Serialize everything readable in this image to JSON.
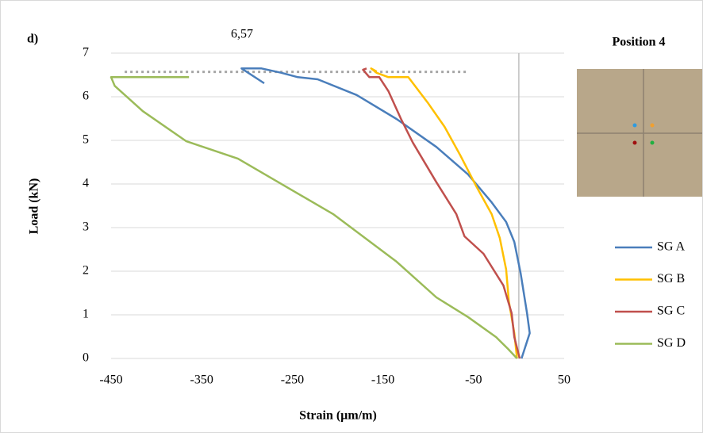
{
  "chart_data": {
    "type": "line",
    "panel_label": "d)",
    "title": "Position 4",
    "x_label": "Strain (µm/m)",
    "y_label": "Load (kN)",
    "xlim": [
      -450,
      50
    ],
    "xticks": [
      -450,
      -350,
      -250,
      -150,
      -50,
      50
    ],
    "ylim": [
      0,
      7
    ],
    "yticks": [
      0,
      1,
      2,
      3,
      4,
      5,
      6,
      7
    ],
    "grid": true,
    "legend": "right",
    "annotation": {
      "text": "6,57",
      "y": 6.57,
      "x_range": [
        -435,
        -55
      ]
    },
    "series": [
      {
        "name": "SG A",
        "color": "#4a7ebb",
        "x": [
          3,
          12,
          9,
          2,
          -5,
          -14,
          -30,
          -56,
          -91,
          -135,
          -179,
          -222,
          -244,
          -262,
          -284,
          -306,
          -281
        ],
        "values": [
          0,
          0.58,
          1.04,
          1.95,
          2.67,
          3.13,
          3.58,
          4.22,
          4.85,
          5.49,
          6.04,
          6.4,
          6.45,
          6.55,
          6.65,
          6.65,
          6.31
        ]
      },
      {
        "name": "SG B",
        "color": "#ffc000",
        "x": [
          -2,
          -5,
          -11,
          -14,
          -21,
          -30,
          -47,
          -65,
          -82,
          -100,
          -122,
          -144,
          -157,
          -163,
          -157
        ],
        "values": [
          0,
          0.58,
          1.31,
          2.04,
          2.76,
          3.31,
          3.95,
          4.67,
          5.31,
          5.85,
          6.45,
          6.45,
          6.55,
          6.65,
          6.58
        ]
      },
      {
        "name": "SG C",
        "color": "#c0504d",
        "x": [
          1,
          -5,
          -8,
          -17,
          -39,
          -60,
          -69,
          -91,
          -117,
          -130,
          -144,
          -154,
          -165,
          -172,
          -168
        ],
        "values": [
          0,
          0.49,
          1.04,
          1.67,
          2.4,
          2.8,
          3.31,
          4.04,
          4.95,
          5.49,
          6.13,
          6.45,
          6.45,
          6.62,
          6.65
        ]
      },
      {
        "name": "SG D",
        "color": "#9bbb59",
        "x": [
          -2,
          -12,
          -25,
          -56,
          -91,
          -135,
          -205,
          -310,
          -367,
          -415,
          -446,
          -450,
          -441,
          -364
        ],
        "values": [
          0,
          0.22,
          0.49,
          0.95,
          1.4,
          2.22,
          3.31,
          4.58,
          4.98,
          5.67,
          6.25,
          6.45,
          6.45,
          6.45
        ]
      }
    ]
  }
}
